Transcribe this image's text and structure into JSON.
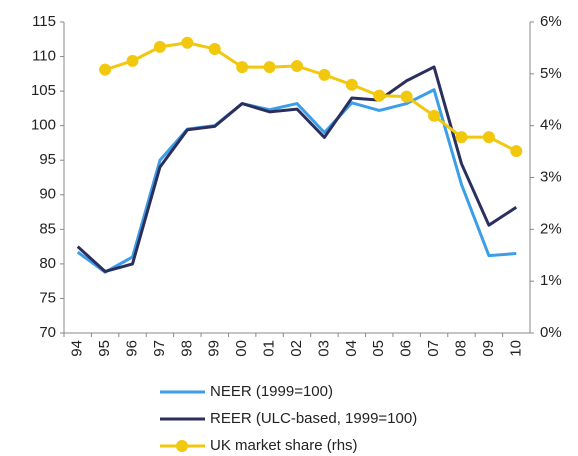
{
  "chart_data": {
    "type": "line",
    "categories": [
      "94",
      "95",
      "96",
      "97",
      "98",
      "99",
      "00",
      "01",
      "02",
      "03",
      "04",
      "05",
      "06",
      "07",
      "08",
      "09",
      "10"
    ],
    "series": [
      {
        "name": "NEER (1999=100)",
        "color": "#3d9ee8",
        "values": [
          81.7,
          78.8,
          81,
          95,
          99.5,
          100,
          103.2,
          102.3,
          103.2,
          99,
          103.3,
          102.2,
          103.2,
          105.2,
          91.5,
          81.2,
          81.5
        ]
      },
      {
        "name": "REER (ULC-based, 1999=100)",
        "color": "#2b2f5e",
        "values": [
          82.5,
          78.9,
          80,
          94,
          99.4,
          99.9,
          103.2,
          102,
          102.4,
          98.3,
          104,
          103.7,
          106.5,
          108.5,
          94.5,
          85.6,
          88.2
        ]
      },
      {
        "name": "UK market share (rhs)",
        "color": "#f2c80f",
        "axis": "y2",
        "markers": true,
        "values": [
          null,
          5.08,
          5.25,
          5.52,
          5.6,
          5.48,
          5.13,
          5.13,
          5.15,
          4.98,
          4.79,
          4.58,
          4.56,
          4.19,
          3.78,
          3.78,
          3.51
        ]
      }
    ],
    "ylim": [
      70,
      115
    ],
    "yticks": [
      70,
      75,
      80,
      85,
      90,
      95,
      100,
      105,
      110,
      115
    ],
    "y2lim": [
      0,
      6
    ],
    "y2ticks": [
      {
        "value": 0,
        "label": "0%"
      },
      {
        "value": 1,
        "label": "1%"
      },
      {
        "value": 2,
        "label": "2%"
      },
      {
        "value": 3,
        "label": "3%"
      },
      {
        "value": 4,
        "label": "4%"
      },
      {
        "value": 5,
        "label": "5%"
      },
      {
        "value": 6,
        "label": "6%"
      }
    ],
    "grid": false
  }
}
